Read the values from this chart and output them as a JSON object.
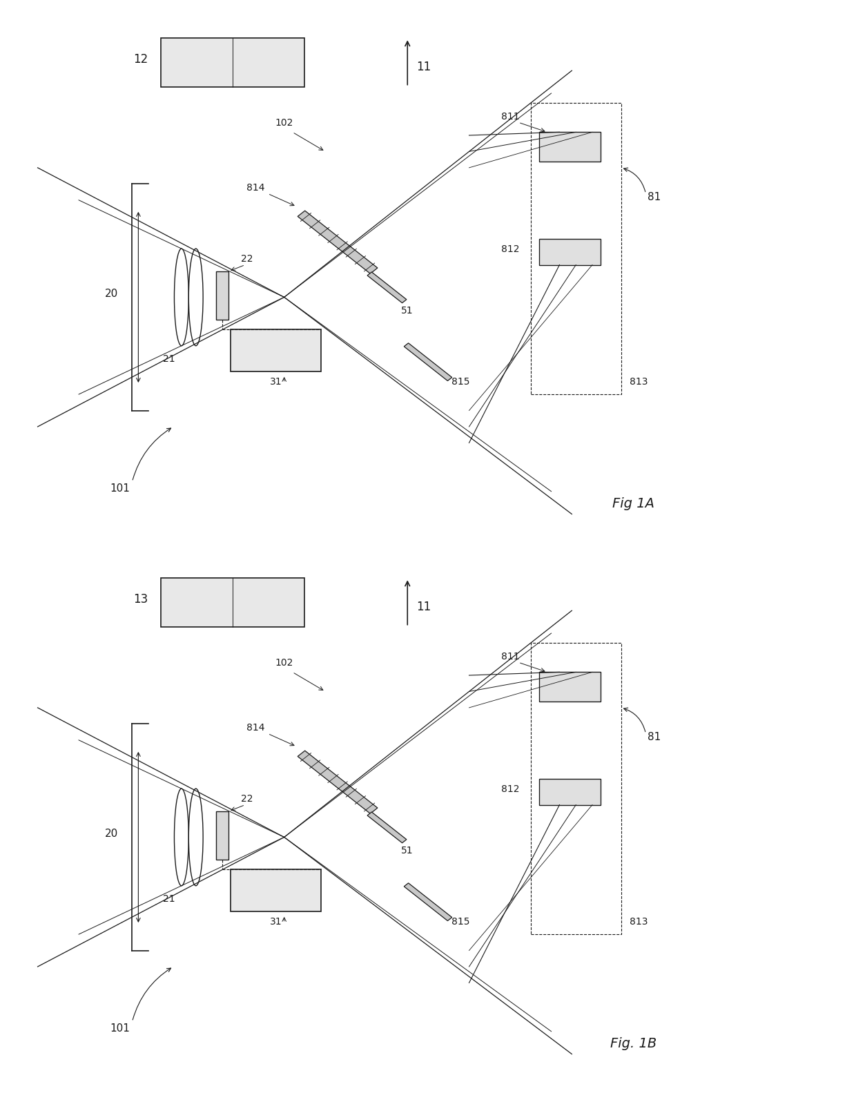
{
  "background_color": "#ffffff",
  "line_color": "#1a1a1a",
  "fig1A_label": "Fig 1A",
  "fig1B_label": "Fig. 1B",
  "label12": "12",
  "label13": "13",
  "label11": "11",
  "label101": "101",
  "label102": "102",
  "label20": "20",
  "label21": "21",
  "label22": "22",
  "label31": "31",
  "label51": "51",
  "label81": "81",
  "label811": "811",
  "label812": "812",
  "label813": "813",
  "label814": "814",
  "label815": "815"
}
